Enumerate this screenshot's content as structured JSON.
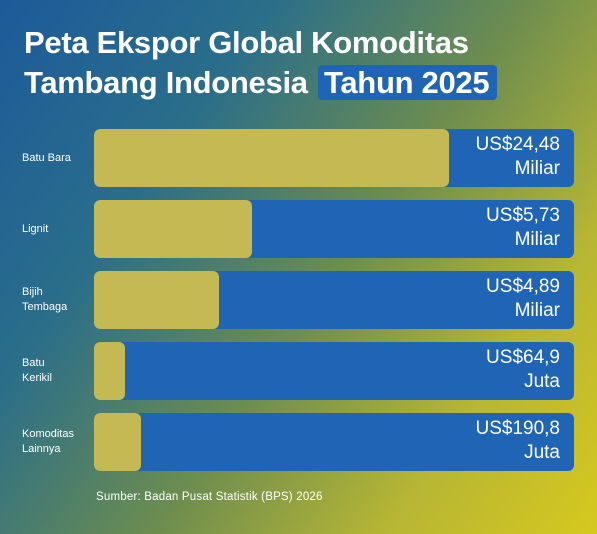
{
  "title": {
    "line1": "Peta Ekspor Global Komoditas",
    "line2": "Tambang Indonesia",
    "highlight": "Tahun 2025"
  },
  "chart_data": {
    "type": "bar",
    "orientation": "horizontal",
    "categories": [
      "Batu Bara",
      "Lignit",
      "Bijih Tembaga",
      "Batu Kerikil",
      "Komoditas Lainnya"
    ],
    "category_lines": [
      [
        "Batu Bara"
      ],
      [
        "Lignit"
      ],
      [
        "Bijih",
        "Tembaga"
      ],
      [
        "Batu",
        "Kerikil"
      ],
      [
        "Komoditas",
        "Lainnya"
      ]
    ],
    "values_usd_billion": [
      24.48,
      5.73,
      4.89,
      0.0649,
      0.1908
    ],
    "value_labels": [
      [
        "US$24,48",
        "Miliar"
      ],
      [
        "US$5,73",
        "Miliar"
      ],
      [
        "US$4,89",
        "Miliar"
      ],
      [
        "US$64,9",
        "Juta"
      ],
      [
        "US$190,8",
        "Juta"
      ]
    ],
    "fill_fraction": [
      0.74,
      0.33,
      0.26,
      0.065,
      0.097
    ],
    "colors": {
      "fill": "#c4b953",
      "track": "#1f64b5",
      "text": "#ffffff"
    }
  },
  "source": "Sumber: Badan Pusat Statistik (BPS) 2026"
}
